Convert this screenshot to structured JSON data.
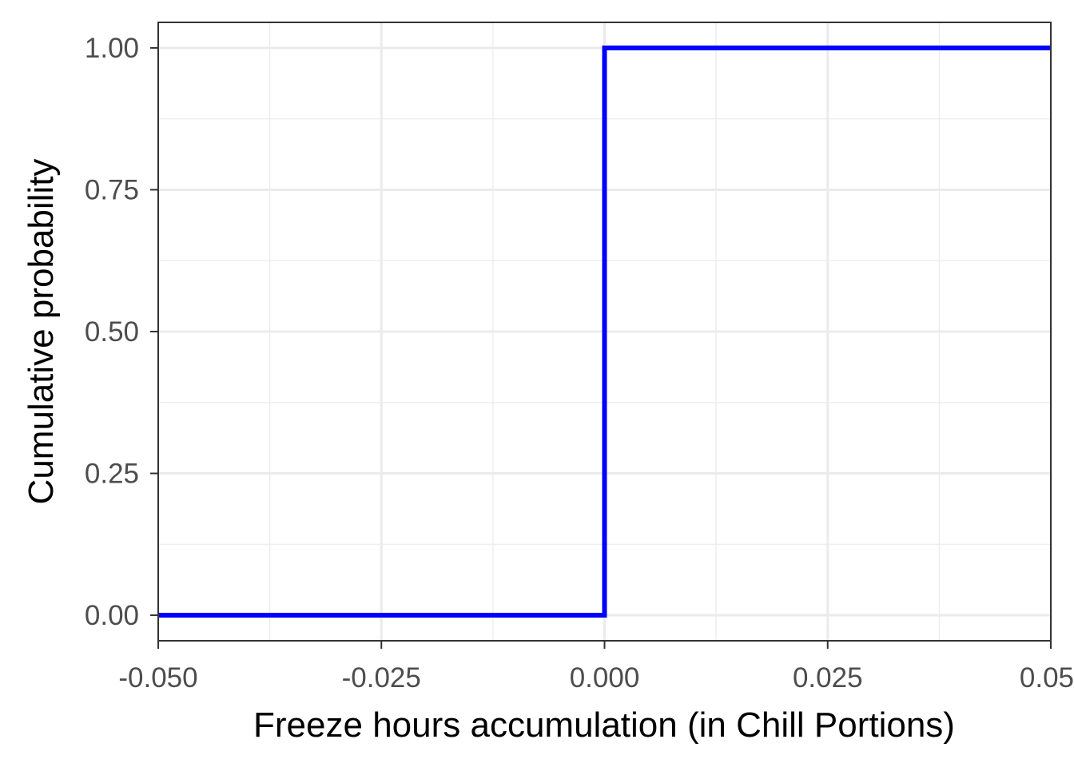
{
  "chart_data": {
    "type": "line",
    "step": true,
    "xlabel": "Freeze hours accumulation (in Chill Portions)",
    "ylabel": "Cumulative probability",
    "xlim": [
      -0.05,
      0.05
    ],
    "ylim": [
      -0.045,
      1.045
    ],
    "x_ticks": [
      -0.05,
      -0.025,
      0.0,
      0.025,
      0.05
    ],
    "x_tick_labels": [
      "-0.050",
      "-0.025",
      "0.000",
      "0.025",
      "0.05"
    ],
    "y_ticks": [
      0.0,
      0.25,
      0.5,
      0.75,
      1.0
    ],
    "y_tick_labels": [
      "0.00",
      "0.25",
      "0.50",
      "0.75",
      "1.00"
    ],
    "grid": true,
    "series": [
      {
        "color": "#0000ff",
        "x": [
          -0.05,
          0.0,
          0.0,
          0.05
        ],
        "y": [
          0.0,
          0.0,
          1.0,
          1.0
        ]
      }
    ]
  }
}
